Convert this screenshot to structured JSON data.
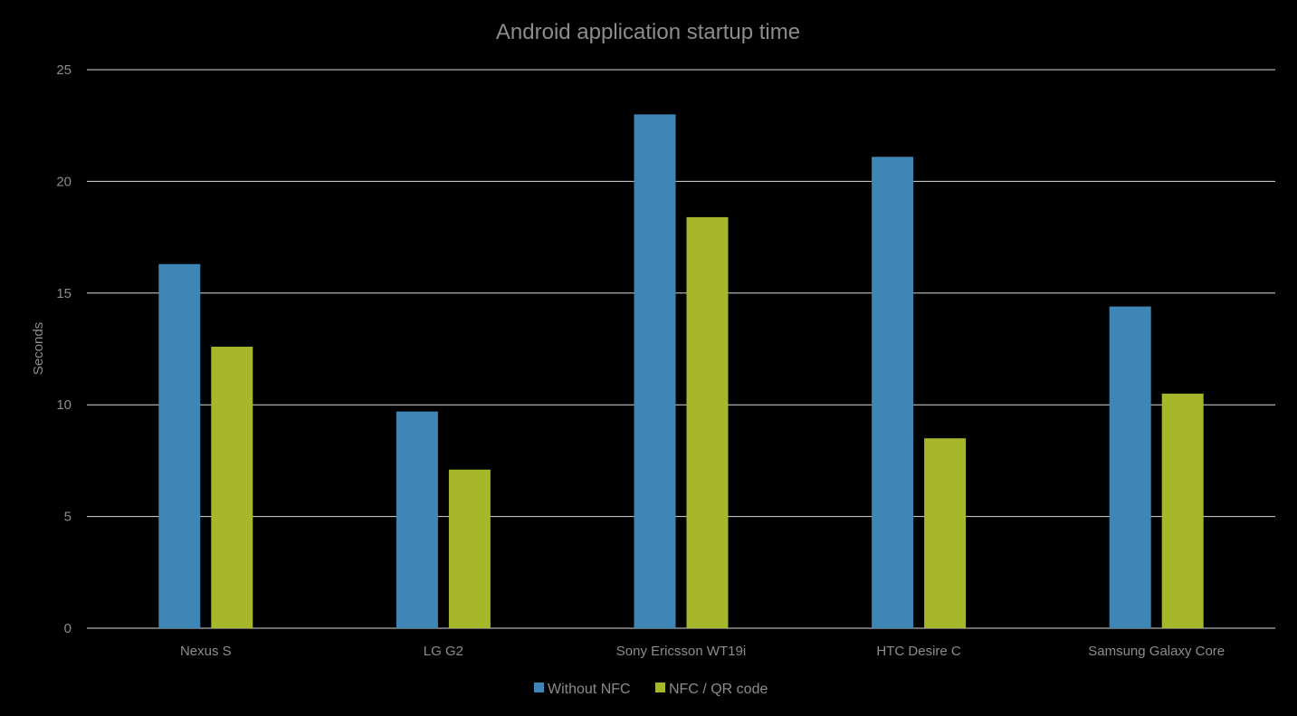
{
  "chart_data": {
    "type": "bar",
    "title": "Android application startup time",
    "xlabel": "",
    "ylabel": "Seconds",
    "ylim": [
      0,
      25
    ],
    "yticks": [
      0,
      5,
      10,
      15,
      20,
      25
    ],
    "grid": true,
    "legend_position": "bottom",
    "categories": [
      "Nexus S",
      "LG G2",
      "Sony Ericsson WT19i",
      "HTC Desire C",
      "Samsung Galaxy Core"
    ],
    "series": [
      {
        "name": "Without NFC",
        "color": "#3e86b5",
        "values": [
          16.3,
          9.7,
          23.0,
          21.1,
          14.4
        ]
      },
      {
        "name": "NFC / QR code",
        "color": "#a6b729",
        "values": [
          12.6,
          7.1,
          18.4,
          8.5,
          10.5
        ]
      }
    ]
  }
}
